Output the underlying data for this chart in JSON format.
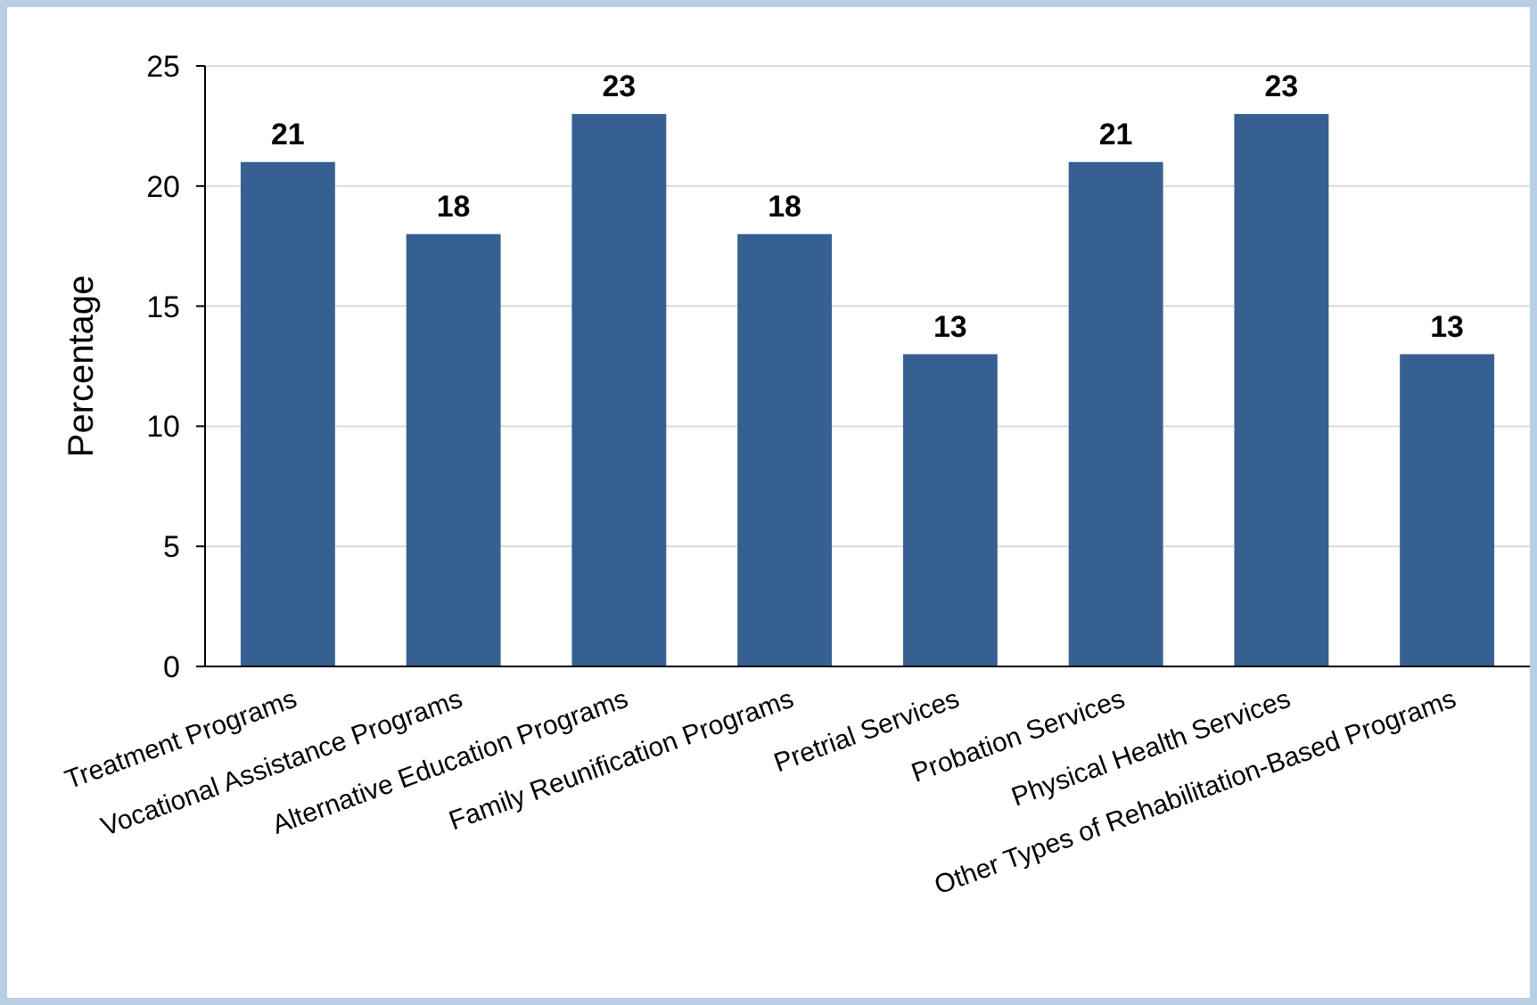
{
  "chart_data": {
    "type": "bar",
    "ylabel": "Percentage",
    "categories": [
      "Treatment Programs",
      "Vocational Assistance Programs",
      "Alternative Education Programs",
      "Family Reunification Programs",
      "Pretrial Services",
      "Probation Services",
      "Physical Health Services",
      "Other Types of Rehabilitation-Based Programs"
    ],
    "values": [
      21,
      18,
      23,
      18,
      13,
      21,
      23,
      13
    ],
    "color": "#376092",
    "ylim": [
      0,
      25
    ],
    "yticks": [
      0,
      5,
      10,
      15,
      20,
      25
    ],
    "grid": "y",
    "data_labels": true
  }
}
